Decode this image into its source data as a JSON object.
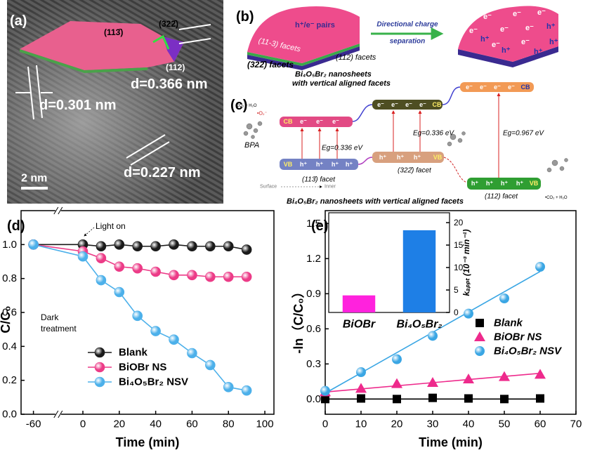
{
  "panel_a": {
    "label": "(a)",
    "facets": [
      "(113̄)",
      "(322̄)",
      "(112)"
    ],
    "spacings": [
      "d=0.366 nm",
      "d=0.301 nm",
      "d=0.227 nm"
    ],
    "scale_bar": "2 nm"
  },
  "panel_b": {
    "label": "(b)",
    "pairs": "h⁺/e⁻ pairs",
    "arrow": [
      "Directional charge",
      "separation"
    ],
    "facets": [
      "(11-3) facets",
      "(322̄) facets",
      "(112) facets"
    ],
    "caption": [
      "Bi₄O₅Br₂ nanosheets",
      "with vertical aligned facets"
    ],
    "electron": "e⁻",
    "hole": "h⁺"
  },
  "panel_c": {
    "label": "(c)",
    "reactants": "CO₂ + H₂O",
    "radical": "•O₂⁻",
    "pollutant": "BPA",
    "cb": "CB",
    "vb": "VB",
    "electron": "e⁻",
    "hole": "h⁺",
    "gaps": [
      "Eg=0.336 eV",
      "Eg=0.336 eV",
      "Eg=0.967 eV"
    ],
    "facets": [
      "(113̄) facet",
      "(322̄) facet",
      "(112) facet"
    ],
    "surface": "Surface",
    "inner": "Inner",
    "products": "•CO₂ + H₂O",
    "caption": "Bi₄O₅Br₂ nanosheets with vertical aligned facets"
  },
  "chart_data": [
    {
      "type": "line",
      "panel_label": "(d)",
      "x_label": "Time (min)",
      "y_label": "C/C₀",
      "annotations": [
        "Light on"
      ],
      "dark_label": [
        "Dark",
        "treatment"
      ],
      "x": [
        -60,
        0,
        10,
        20,
        30,
        40,
        50,
        60,
        70,
        80,
        90
      ],
      "series": [
        {
          "name": "Blank",
          "color": "#1a1a1a",
          "values": [
            1.0,
            1.0,
            0.99,
            1.0,
            0.99,
            0.99,
            1.0,
            0.99,
            0.99,
            0.99,
            0.97
          ]
        },
        {
          "name": "BiOBr NS",
          "color": "#ec3b87",
          "values": [
            1.0,
            0.96,
            0.92,
            0.87,
            0.86,
            0.84,
            0.82,
            0.82,
            0.81,
            0.81,
            0.81
          ]
        },
        {
          "name": "Bi₄O₅Br₂ NSV",
          "color": "#4cb0ea",
          "values": [
            1.0,
            0.93,
            0.79,
            0.72,
            0.58,
            0.49,
            0.44,
            0.36,
            0.29,
            0.16,
            0.14
          ]
        }
      ],
      "xlim": [
        -75,
        105
      ],
      "xticks": [
        -60,
        0,
        20,
        40,
        60,
        80,
        100
      ],
      "axis_break": true,
      "ylim": [
        0,
        1.2
      ],
      "yticks": [
        {
          "value": 0,
          "label": "0.0"
        },
        0.2,
        0.4,
        0.6,
        0.8,
        {
          "value": 1,
          "label": "1.0"
        }
      ],
      "legend": "lower left"
    },
    {
      "type": "scatter",
      "panel_label": "(e)",
      "x_label": "Time (min)",
      "y_label": "-ln（C/C₀）",
      "x": [
        0,
        10,
        20,
        30,
        40,
        50,
        60
      ],
      "series": [
        {
          "name": "Blank",
          "color": "#000000",
          "marker": "square",
          "values": [
            0.0,
            0.005,
            0.0,
            0.01,
            0.005,
            0.0,
            0.005
          ],
          "fit": [
            0.0,
            0.0
          ]
        },
        {
          "name": "BiOBr NS",
          "color": "#ee2a8c",
          "marker": "triangle",
          "values": [
            0.06,
            0.09,
            0.13,
            0.14,
            0.17,
            0.19,
            0.21
          ],
          "fit": [
            0.06,
            0.22
          ]
        },
        {
          "name": "Bi₄O₅Br₂ NSV",
          "color": "#3aa6e4",
          "marker": "circle",
          "values": [
            0.07,
            0.23,
            0.34,
            0.54,
            0.73,
            0.86,
            1.13
          ],
          "fit": [
            0.05,
            1.09
          ]
        }
      ],
      "fit_x": [
        0,
        60
      ],
      "xlim": [
        0,
        70
      ],
      "xticks": [
        0,
        10,
        20,
        30,
        40,
        50,
        60,
        70
      ],
      "ylim": [
        -0.13,
        1.61
      ],
      "yticks": [
        {
          "value": 0,
          "label": "0.0"
        },
        0.3,
        0.6,
        0.9,
        1.2,
        1.5
      ],
      "legend": "right"
    },
    {
      "type": "bar",
      "categories": [
        "BiOBr",
        "Bi₄O₅Br₂"
      ],
      "values": [
        3.8,
        18.3
      ],
      "colors": [
        "#ff22dd",
        "#1e7fe6"
      ],
      "y_label": "kₐₚₚₜ (10⁻³ min⁻¹)",
      "ylim": [
        0,
        22.2
      ],
      "yticks": [
        0,
        5,
        10,
        15,
        20
      ],
      "y_axis_side": "right"
    }
  ]
}
